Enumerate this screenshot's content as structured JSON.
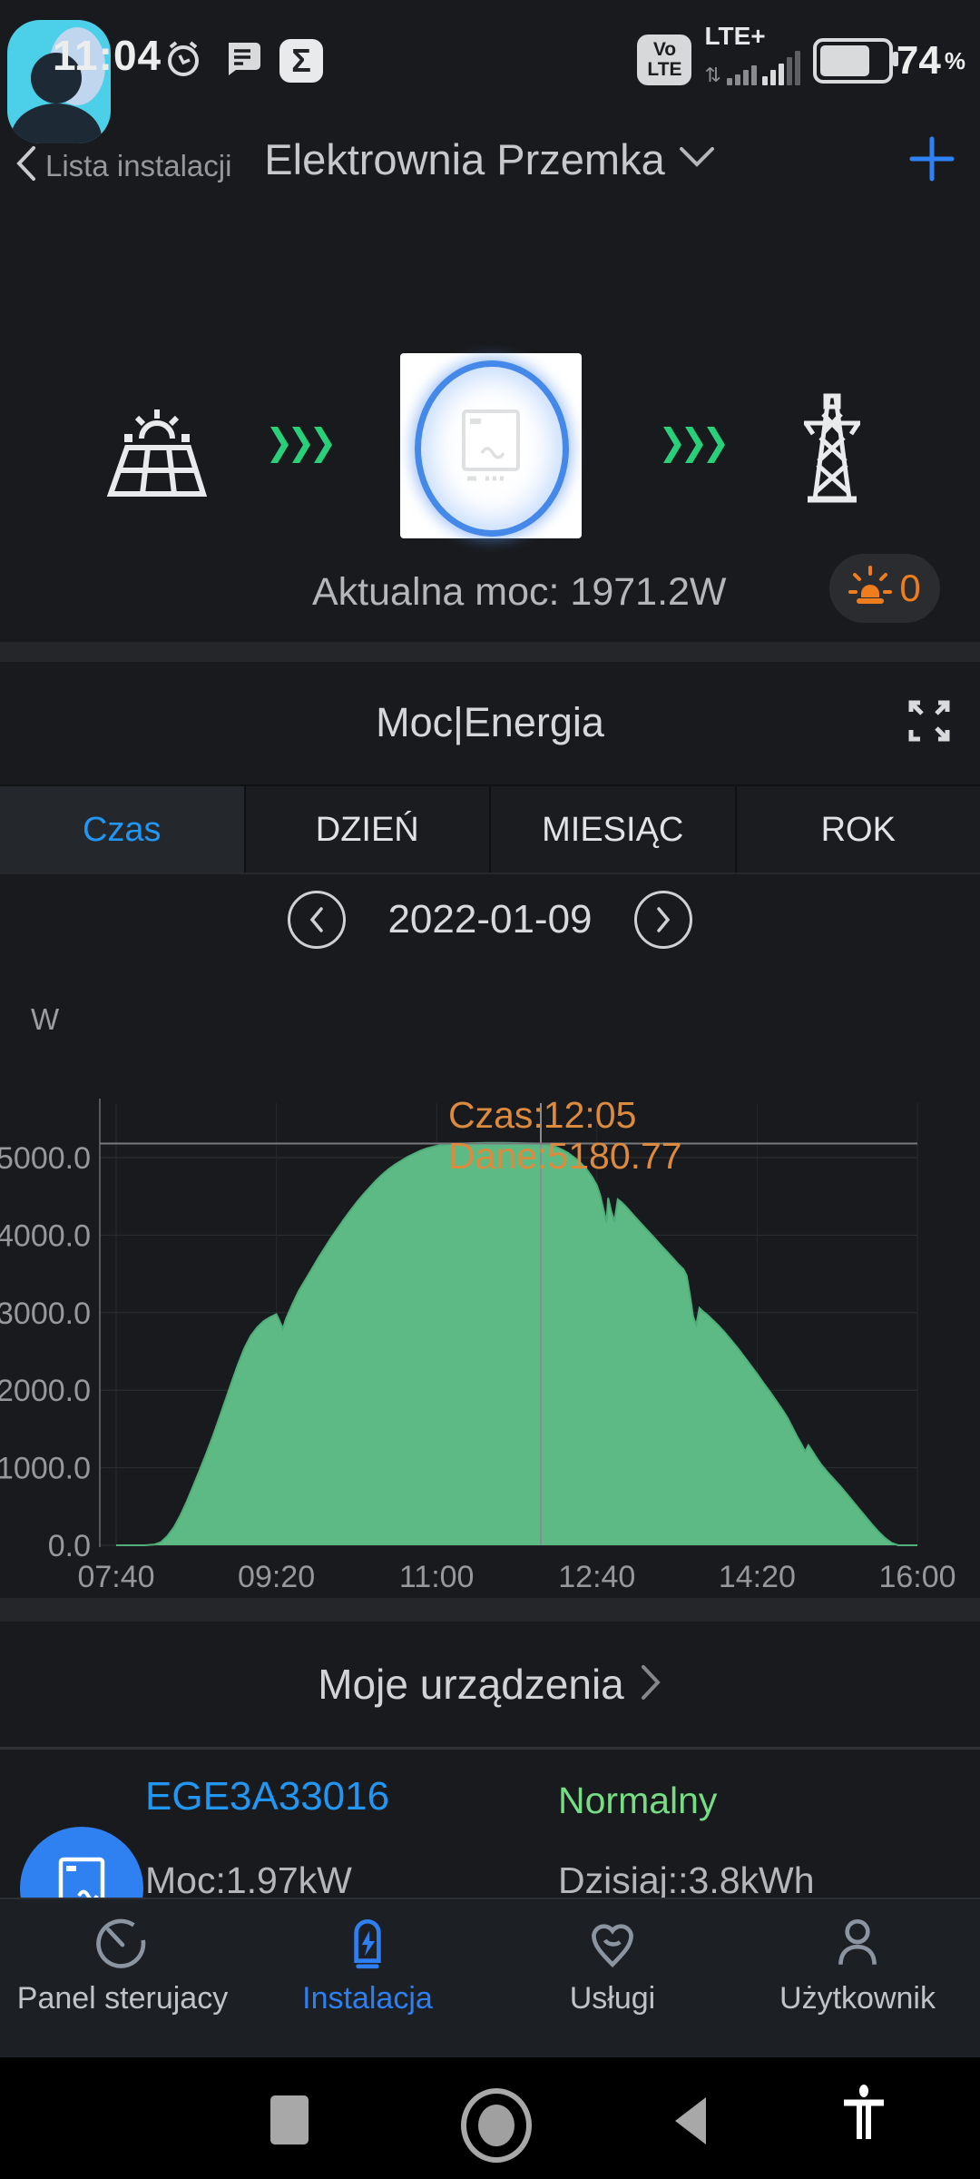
{
  "status_bar": {
    "time": "11:04",
    "volte_line1": "Vo",
    "volte_line2": "LTE",
    "network": "LTE+",
    "battery_percent": "74",
    "percent_sign": "%"
  },
  "header": {
    "back_label": "Lista instalacji",
    "title": "Elektrownia Przemka"
  },
  "overview": {
    "current_power": "Aktualna moc: 1971.2W",
    "alarm_count": "0"
  },
  "chart_card": {
    "title": "Moc|Energia",
    "unit": "W",
    "date": "2022-01-09",
    "tabs": [
      {
        "label": "Czas",
        "active": true
      },
      {
        "label": "DZIEŃ",
        "active": false
      },
      {
        "label": "MIESIĄC",
        "active": false
      },
      {
        "label": "ROK",
        "active": false
      }
    ]
  },
  "chart_data": {
    "type": "area",
    "title": "Moc|Energia",
    "date": "2022-01-09",
    "ylabel": "W",
    "ylim": [
      0,
      5500
    ],
    "grid": true,
    "x_axis": {
      "tick_labels": [
        "07:40",
        "09:20",
        "11:00",
        "12:40",
        "14:20",
        "16:00"
      ],
      "tick_minutes": [
        0,
        100,
        200,
        300,
        400,
        500
      ]
    },
    "y_axis": {
      "tick_labels": [
        "0.0",
        "1000.0",
        "2000.0",
        "3000.0",
        "4000.0",
        "5000.0"
      ],
      "tick_values": [
        0,
        1000,
        2000,
        3000,
        4000,
        5000
      ]
    },
    "crosshair": {
      "time": "12:05",
      "minute": 265,
      "value": 5180.77
    },
    "tooltip_lines": [
      "Czas:12:05",
      "Dane:5180.77"
    ],
    "tooltip_color": "#dc8a3e",
    "series": [
      {
        "name": "Moc",
        "color": "#5dba85",
        "line_color": "#4fae79",
        "points": [
          [
            0,
            0
          ],
          [
            18,
            0
          ],
          [
            24,
            10
          ],
          [
            28,
            40
          ],
          [
            32,
            120
          ],
          [
            36,
            230
          ],
          [
            40,
            380
          ],
          [
            44,
            560
          ],
          [
            48,
            760
          ],
          [
            52,
            960
          ],
          [
            56,
            1170
          ],
          [
            60,
            1390
          ],
          [
            64,
            1620
          ],
          [
            68,
            1860
          ],
          [
            72,
            2100
          ],
          [
            76,
            2330
          ],
          [
            80,
            2540
          ],
          [
            84,
            2700
          ],
          [
            88,
            2810
          ],
          [
            92,
            2890
          ],
          [
            96,
            2940
          ],
          [
            100,
            2980
          ],
          [
            102,
            2890
          ],
          [
            104,
            2790
          ],
          [
            106,
            2920
          ],
          [
            110,
            3110
          ],
          [
            114,
            3280
          ],
          [
            118,
            3420
          ],
          [
            122,
            3560
          ],
          [
            126,
            3700
          ],
          [
            130,
            3830
          ],
          [
            134,
            3960
          ],
          [
            138,
            4080
          ],
          [
            142,
            4200
          ],
          [
            146,
            4310
          ],
          [
            150,
            4420
          ],
          [
            154,
            4520
          ],
          [
            158,
            4610
          ],
          [
            162,
            4700
          ],
          [
            166,
            4780
          ],
          [
            170,
            4850
          ],
          [
            174,
            4910
          ],
          [
            178,
            4960
          ],
          [
            182,
            5010
          ],
          [
            186,
            5050
          ],
          [
            190,
            5090
          ],
          [
            194,
            5120
          ],
          [
            198,
            5140
          ],
          [
            202,
            5160
          ],
          [
            208,
            5175
          ],
          [
            214,
            5182
          ],
          [
            222,
            5186
          ],
          [
            232,
            5190
          ],
          [
            242,
            5190
          ],
          [
            252,
            5186
          ],
          [
            260,
            5183
          ],
          [
            265,
            5181
          ],
          [
            270,
            5165
          ],
          [
            274,
            5140
          ],
          [
            278,
            5105
          ],
          [
            282,
            5060
          ],
          [
            286,
            5000
          ],
          [
            290,
            4930
          ],
          [
            294,
            4840
          ],
          [
            297,
            4750
          ],
          [
            300,
            4640
          ],
          [
            302,
            4520
          ],
          [
            304,
            4340
          ],
          [
            306,
            4160
          ],
          [
            307,
            4480
          ],
          [
            309,
            4300
          ],
          [
            311,
            4180
          ],
          [
            313,
            4460
          ],
          [
            315,
            4430
          ],
          [
            318,
            4370
          ],
          [
            321,
            4300
          ],
          [
            324,
            4230
          ],
          [
            328,
            4140
          ],
          [
            332,
            4050
          ],
          [
            336,
            3960
          ],
          [
            340,
            3870
          ],
          [
            344,
            3780
          ],
          [
            348,
            3690
          ],
          [
            351,
            3620
          ],
          [
            354,
            3560
          ],
          [
            356,
            3480
          ],
          [
            358,
            3240
          ],
          [
            360,
            2950
          ],
          [
            362,
            2840
          ],
          [
            364,
            3060
          ],
          [
            366,
            3020
          ],
          [
            369,
            2970
          ],
          [
            372,
            2910
          ],
          [
            376,
            2830
          ],
          [
            380,
            2740
          ],
          [
            384,
            2640
          ],
          [
            388,
            2540
          ],
          [
            392,
            2430
          ],
          [
            396,
            2320
          ],
          [
            400,
            2210
          ],
          [
            404,
            2090
          ],
          [
            408,
            1980
          ],
          [
            412,
            1860
          ],
          [
            416,
            1740
          ],
          [
            419,
            1640
          ],
          [
            422,
            1520
          ],
          [
            425,
            1400
          ],
          [
            428,
            1290
          ],
          [
            430,
            1210
          ],
          [
            432,
            1290
          ],
          [
            434,
            1230
          ],
          [
            437,
            1130
          ],
          [
            440,
            1040
          ],
          [
            444,
            940
          ],
          [
            448,
            850
          ],
          [
            452,
            760
          ],
          [
            456,
            660
          ],
          [
            460,
            560
          ],
          [
            464,
            460
          ],
          [
            468,
            360
          ],
          [
            472,
            260
          ],
          [
            476,
            170
          ],
          [
            480,
            90
          ],
          [
            484,
            30
          ],
          [
            488,
            0
          ],
          [
            500,
            0
          ]
        ]
      }
    ]
  },
  "devices": {
    "section_title": "Moje urządzenia",
    "device": {
      "name": "EGE3A33016",
      "status": "Normalny",
      "power": "Moc:1.97kW",
      "today": "Dzisiaj::3.8kWh"
    }
  },
  "bottom_nav": {
    "items": [
      {
        "label": "Panel sterujacy",
        "icon": "gauge-icon",
        "active": false
      },
      {
        "label": "Instalacja",
        "icon": "inverter-icon",
        "active": true
      },
      {
        "label": "Usługi",
        "icon": "heart-pin-icon",
        "active": false
      },
      {
        "label": "Użytkownik",
        "icon": "user-icon",
        "active": false
      }
    ]
  },
  "colors": {
    "accent_blue": "#2e82f5",
    "link_blue": "#2196f3",
    "flow_green": "#29d07a",
    "status_green": "#76dd84",
    "chart_green": "#5dba85",
    "tooltip_orange": "#dc8a3e",
    "alarm_orange": "#ef7d1d",
    "avatar_teal": "#4ccfe8"
  }
}
